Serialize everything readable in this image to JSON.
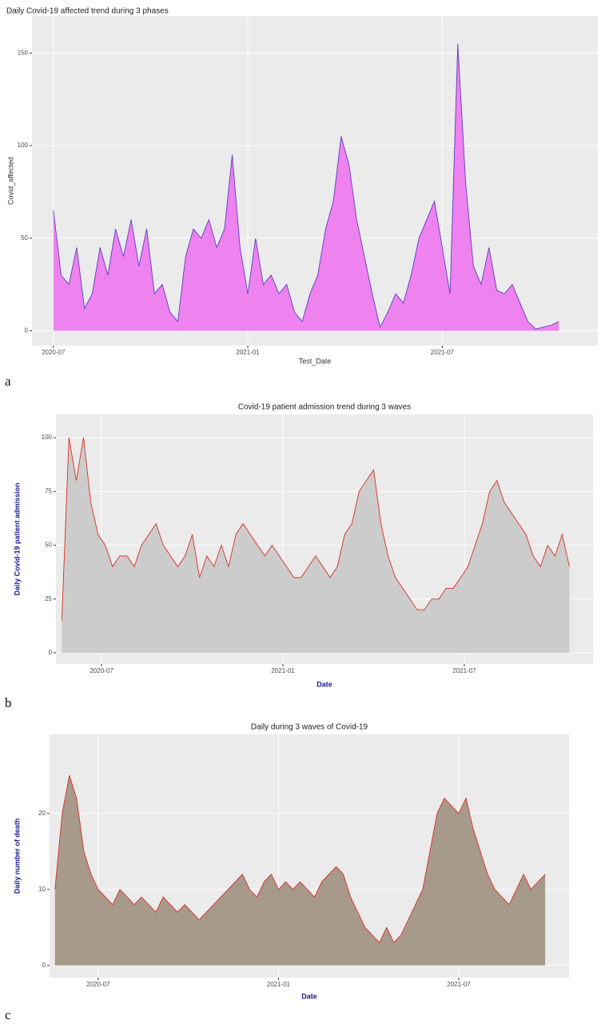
{
  "chart_data": [
    {
      "type": "area",
      "title": "Daily Covid-19 affected trend during 3 phases",
      "x_label": "Test_Date",
      "y_label": "Covid_affected",
      "panel_label": "a",
      "x": [
        2020.5,
        2020.52,
        2020.54,
        2020.56,
        2020.58,
        2020.6,
        2020.62,
        2020.64,
        2020.66,
        2020.68,
        2020.7,
        2020.72,
        2020.74,
        2020.76,
        2020.78,
        2020.8,
        2020.82,
        2020.84,
        2020.86,
        2020.88,
        2020.9,
        2020.92,
        2020.94,
        2020.96,
        2020.98,
        2021.0,
        2021.02,
        2021.04,
        2021.06,
        2021.08,
        2021.1,
        2021.12,
        2021.14,
        2021.16,
        2021.18,
        2021.2,
        2021.22,
        2021.24,
        2021.26,
        2021.28,
        2021.3,
        2021.32,
        2021.34,
        2021.36,
        2021.38,
        2021.4,
        2021.42,
        2021.44,
        2021.46,
        2021.48,
        2021.5,
        2021.52,
        2021.54,
        2021.56,
        2021.58,
        2021.6,
        2021.62,
        2021.64,
        2021.66,
        2021.68,
        2021.7,
        2021.72,
        2021.74,
        2021.76,
        2021.78,
        2021.8
      ],
      "series": [
        {
          "name": "Covid_affected",
          "color": "#5b3fc4",
          "fill": "#ee82ee",
          "values": [
            65,
            30,
            25,
            45,
            12,
            20,
            45,
            30,
            55,
            40,
            60,
            35,
            55,
            20,
            25,
            10,
            5,
            40,
            55,
            50,
            60,
            45,
            55,
            95,
            45,
            20,
            50,
            25,
            30,
            20,
            25,
            10,
            5,
            20,
            30,
            55,
            70,
            105,
            90,
            60,
            40,
            20,
            2,
            10,
            20,
            15,
            30,
            50,
            60,
            70,
            45,
            20,
            155,
            80,
            35,
            25,
            45,
            22,
            20,
            25,
            15,
            5,
            1,
            2,
            3,
            5
          ]
        }
      ],
      "xlim": [
        2020.445,
        2021.9
      ],
      "ylim": [
        -8,
        170
      ],
      "xticks": [
        {
          "value": 2020.5,
          "label": "2020-07"
        },
        {
          "value": 2021.0,
          "label": "2021-01"
        },
        {
          "value": 2021.5,
          "label": "2021-07"
        }
      ],
      "yticks": [
        0,
        50,
        100,
        150
      ],
      "grid": true
    },
    {
      "type": "area",
      "title": "Covid-19 patient admission trend during 3 waves",
      "x_label": "Date",
      "y_label": "Daily Covid-19 patient admission",
      "panel_label": "b",
      "x": [
        2020.39,
        2020.41,
        2020.43,
        2020.45,
        2020.47,
        2020.49,
        2020.51,
        2020.53,
        2020.55,
        2020.57,
        2020.59,
        2020.61,
        2020.63,
        2020.65,
        2020.67,
        2020.69,
        2020.71,
        2020.73,
        2020.75,
        2020.77,
        2020.79,
        2020.81,
        2020.83,
        2020.85,
        2020.87,
        2020.89,
        2020.91,
        2020.93,
        2020.95,
        2020.97,
        2020.99,
        2021.01,
        2021.03,
        2021.05,
        2021.07,
        2021.09,
        2021.11,
        2021.13,
        2021.15,
        2021.17,
        2021.19,
        2021.21,
        2021.23,
        2021.25,
        2021.27,
        2021.29,
        2021.31,
        2021.33,
        2021.35,
        2021.37,
        2021.39,
        2021.41,
        2021.43,
        2021.45,
        2021.47,
        2021.49,
        2021.51,
        2021.53,
        2021.55,
        2021.57,
        2021.59,
        2021.61,
        2021.63,
        2021.65,
        2021.67,
        2021.69,
        2021.71,
        2021.73,
        2021.75,
        2021.77,
        2021.79
      ],
      "series": [
        {
          "name": "Daily Covid-19 patient admission",
          "color": "#d73027",
          "fill": "#cccccc",
          "values": [
            15,
            100,
            80,
            100,
            70,
            55,
            50,
            40,
            45,
            45,
            40,
            50,
            55,
            60,
            50,
            45,
            40,
            45,
            55,
            35,
            45,
            40,
            50,
            40,
            55,
            60,
            55,
            50,
            45,
            50,
            45,
            40,
            35,
            35,
            40,
            45,
            40,
            35,
            40,
            55,
            60,
            75,
            80,
            85,
            60,
            45,
            35,
            30,
            25,
            20,
            20,
            25,
            25,
            30,
            30,
            35,
            40,
            50,
            60,
            75,
            80,
            70,
            65,
            60,
            55,
            45,
            40,
            50,
            45,
            55,
            40
          ]
        }
      ],
      "xlim": [
        2020.374,
        2021.855
      ],
      "ylim": [
        -5.2,
        110.8
      ],
      "xticks": [
        {
          "value": 2020.5,
          "label": "2020-07"
        },
        {
          "value": 2021.0,
          "label": "2021-01"
        },
        {
          "value": 2021.5,
          "label": "2021-07"
        }
      ],
      "yticks": [
        0,
        25,
        50,
        75,
        100
      ],
      "grid": true
    },
    {
      "type": "area",
      "title": "Daily during 3 waves of Covid-19",
      "x_label": "Date",
      "y_label": "Daily number of death",
      "panel_label": "c",
      "x": [
        2020.38,
        2020.4,
        2020.42,
        2020.44,
        2020.46,
        2020.48,
        2020.5,
        2020.52,
        2020.54,
        2020.56,
        2020.58,
        2020.6,
        2020.62,
        2020.64,
        2020.66,
        2020.68,
        2020.7,
        2020.72,
        2020.74,
        2020.76,
        2020.78,
        2020.8,
        2020.82,
        2020.84,
        2020.86,
        2020.88,
        2020.9,
        2020.92,
        2020.94,
        2020.96,
        2020.98,
        2021.0,
        2021.02,
        2021.04,
        2021.06,
        2021.08,
        2021.1,
        2021.12,
        2021.14,
        2021.16,
        2021.18,
        2021.2,
        2021.22,
        2021.24,
        2021.26,
        2021.28,
        2021.3,
        2021.32,
        2021.34,
        2021.36,
        2021.38,
        2021.4,
        2021.42,
        2021.44,
        2021.46,
        2021.48,
        2021.5,
        2021.52,
        2021.54,
        2021.56,
        2021.58,
        2021.6,
        2021.62,
        2021.64,
        2021.66,
        2021.68,
        2021.7,
        2021.72,
        2021.74
      ],
      "series": [
        {
          "name": "Daily number of death",
          "color": "#d73027",
          "fill": "#a89a8a",
          "values": [
            10,
            20,
            25,
            22,
            15,
            12,
            10,
            9,
            8,
            10,
            9,
            8,
            9,
            8,
            7,
            9,
            8,
            7,
            8,
            7,
            6,
            7,
            8,
            9,
            10,
            11,
            12,
            10,
            9,
            11,
            12,
            10,
            11,
            10,
            11,
            10,
            9,
            11,
            12,
            13,
            12,
            9,
            7,
            5,
            4,
            3,
            5,
            3,
            4,
            6,
            8,
            10,
            15,
            20,
            22,
            21,
            20,
            22,
            18,
            15,
            12,
            10,
            9,
            8,
            10,
            12,
            10,
            11,
            12
          ]
        }
      ],
      "xlim": [
        2020.365,
        2021.806
      ],
      "ylim": [
        -1.6,
        30.4
      ],
      "xticks": [
        {
          "value": 2020.5,
          "label": "2020-07"
        },
        {
          "value": 2021.0,
          "label": "2021-01"
        },
        {
          "value": 2021.5,
          "label": "2021-07"
        }
      ],
      "yticks": [
        0,
        10,
        20
      ],
      "grid": true
    }
  ]
}
